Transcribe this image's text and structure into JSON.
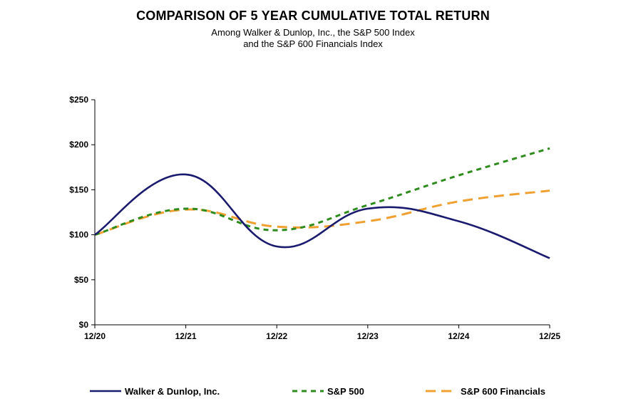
{
  "chart_data": {
    "type": "line",
    "title": "COMPARISON OF 5 YEAR CUMULATIVE TOTAL RETURN",
    "subtitle_lines": [
      "Among Walker & Dunlop, Inc., the S&P 500 Index",
      "and the S&P 600 Financials Index"
    ],
    "categories": [
      "12/20",
      "12/21",
      "12/22",
      "12/23",
      "12/24",
      "12/25"
    ],
    "ylim": [
      0,
      250
    ],
    "yticks": [
      0,
      50,
      100,
      150,
      200,
      250
    ],
    "ytick_labels": [
      "$0",
      "$50",
      "$100",
      "$150",
      "$200",
      "$250"
    ],
    "xlabel": "",
    "ylabel": "",
    "series": [
      {
        "name": "Walker & Dunlop, Inc.",
        "values": [
          100,
          167,
          87,
          129,
          115,
          74
        ],
        "color": "#1a1a6e",
        "style": "solid"
      },
      {
        "name": "S&P 500",
        "values": [
          100,
          129,
          105,
          133,
          166,
          196
        ],
        "color": "#2e8b1e",
        "style": "dashed"
      },
      {
        "name": "S&P 600 Financials",
        "values": [
          100,
          128,
          109,
          115,
          137,
          149
        ],
        "color": "#f0a030",
        "style": "dashed"
      }
    ],
    "legend_position": "bottom"
  }
}
